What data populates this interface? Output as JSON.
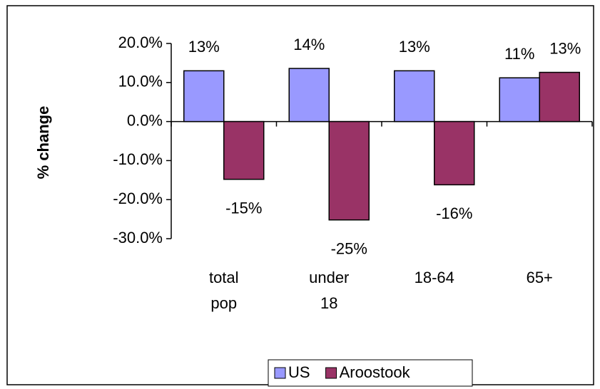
{
  "chart_data": {
    "type": "bar",
    "y_label": "% change",
    "categories": [
      "total pop",
      "under 18",
      "18-64",
      "65+"
    ],
    "series": [
      {
        "name": "US",
        "color": "#9999ff",
        "values": [
          13.0,
          13.6,
          13.0,
          11.2
        ],
        "value_labels": [
          "13%",
          "14%",
          "13%",
          "11%"
        ]
      },
      {
        "name": "Aroostook",
        "color": "#993366",
        "values": [
          -14.8,
          -25.2,
          -16.2,
          12.6
        ],
        "value_labels": [
          "-15%",
          "-25%",
          "-16%",
          "13%"
        ]
      }
    ],
    "ylim": [
      -30,
      20
    ],
    "yticks": [
      {
        "value": -30,
        "label": "-30.0%"
      },
      {
        "value": -20,
        "label": "-20.0%"
      },
      {
        "value": -10,
        "label": "-10.0%"
      },
      {
        "value": 0,
        "label": "0.0%"
      },
      {
        "value": 10,
        "label": "10.0%"
      },
      {
        "value": 20,
        "label": "20.0%"
      }
    ],
    "legend": "bottom"
  }
}
